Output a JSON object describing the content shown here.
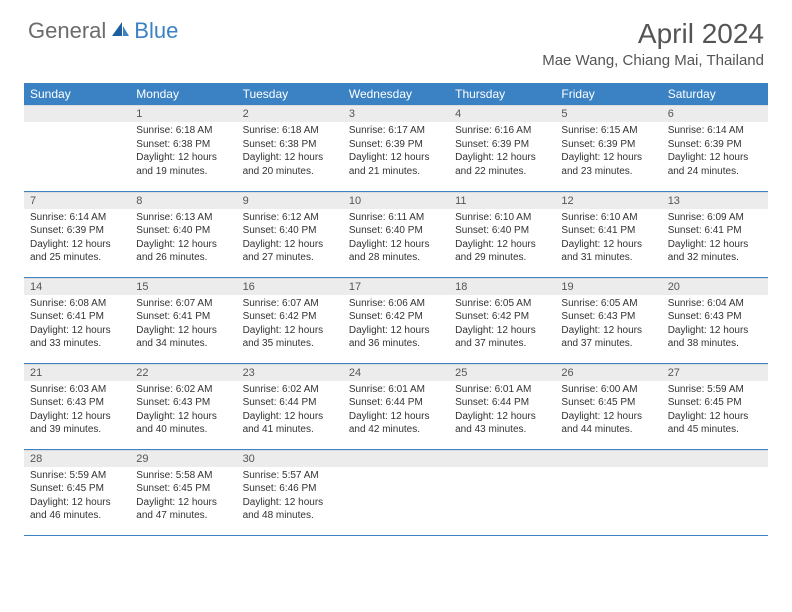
{
  "logo": {
    "general": "General",
    "blue": "Blue"
  },
  "title": "April 2024",
  "location": "Mae Wang, Chiang Mai, Thailand",
  "colors": {
    "header_bg": "#3b82c4",
    "header_text": "#ffffff",
    "daynum_bg": "#ececec",
    "border": "#3b82c4",
    "text": "#333333",
    "logo_gray": "#6b6b6b",
    "logo_blue": "#3b82c4",
    "background": "#ffffff"
  },
  "weekdays": [
    "Sunday",
    "Monday",
    "Tuesday",
    "Wednesday",
    "Thursday",
    "Friday",
    "Saturday"
  ],
  "weeks": [
    [
      {
        "day": "",
        "sunrise": "",
        "sunset": "",
        "daylight": ""
      },
      {
        "day": "1",
        "sunrise": "Sunrise: 6:18 AM",
        "sunset": "Sunset: 6:38 PM",
        "daylight": "Daylight: 12 hours and 19 minutes."
      },
      {
        "day": "2",
        "sunrise": "Sunrise: 6:18 AM",
        "sunset": "Sunset: 6:38 PM",
        "daylight": "Daylight: 12 hours and 20 minutes."
      },
      {
        "day": "3",
        "sunrise": "Sunrise: 6:17 AM",
        "sunset": "Sunset: 6:39 PM",
        "daylight": "Daylight: 12 hours and 21 minutes."
      },
      {
        "day": "4",
        "sunrise": "Sunrise: 6:16 AM",
        "sunset": "Sunset: 6:39 PM",
        "daylight": "Daylight: 12 hours and 22 minutes."
      },
      {
        "day": "5",
        "sunrise": "Sunrise: 6:15 AM",
        "sunset": "Sunset: 6:39 PM",
        "daylight": "Daylight: 12 hours and 23 minutes."
      },
      {
        "day": "6",
        "sunrise": "Sunrise: 6:14 AM",
        "sunset": "Sunset: 6:39 PM",
        "daylight": "Daylight: 12 hours and 24 minutes."
      }
    ],
    [
      {
        "day": "7",
        "sunrise": "Sunrise: 6:14 AM",
        "sunset": "Sunset: 6:39 PM",
        "daylight": "Daylight: 12 hours and 25 minutes."
      },
      {
        "day": "8",
        "sunrise": "Sunrise: 6:13 AM",
        "sunset": "Sunset: 6:40 PM",
        "daylight": "Daylight: 12 hours and 26 minutes."
      },
      {
        "day": "9",
        "sunrise": "Sunrise: 6:12 AM",
        "sunset": "Sunset: 6:40 PM",
        "daylight": "Daylight: 12 hours and 27 minutes."
      },
      {
        "day": "10",
        "sunrise": "Sunrise: 6:11 AM",
        "sunset": "Sunset: 6:40 PM",
        "daylight": "Daylight: 12 hours and 28 minutes."
      },
      {
        "day": "11",
        "sunrise": "Sunrise: 6:10 AM",
        "sunset": "Sunset: 6:40 PM",
        "daylight": "Daylight: 12 hours and 29 minutes."
      },
      {
        "day": "12",
        "sunrise": "Sunrise: 6:10 AM",
        "sunset": "Sunset: 6:41 PM",
        "daylight": "Daylight: 12 hours and 31 minutes."
      },
      {
        "day": "13",
        "sunrise": "Sunrise: 6:09 AM",
        "sunset": "Sunset: 6:41 PM",
        "daylight": "Daylight: 12 hours and 32 minutes."
      }
    ],
    [
      {
        "day": "14",
        "sunrise": "Sunrise: 6:08 AM",
        "sunset": "Sunset: 6:41 PM",
        "daylight": "Daylight: 12 hours and 33 minutes."
      },
      {
        "day": "15",
        "sunrise": "Sunrise: 6:07 AM",
        "sunset": "Sunset: 6:41 PM",
        "daylight": "Daylight: 12 hours and 34 minutes."
      },
      {
        "day": "16",
        "sunrise": "Sunrise: 6:07 AM",
        "sunset": "Sunset: 6:42 PM",
        "daylight": "Daylight: 12 hours and 35 minutes."
      },
      {
        "day": "17",
        "sunrise": "Sunrise: 6:06 AM",
        "sunset": "Sunset: 6:42 PM",
        "daylight": "Daylight: 12 hours and 36 minutes."
      },
      {
        "day": "18",
        "sunrise": "Sunrise: 6:05 AM",
        "sunset": "Sunset: 6:42 PM",
        "daylight": "Daylight: 12 hours and 37 minutes."
      },
      {
        "day": "19",
        "sunrise": "Sunrise: 6:05 AM",
        "sunset": "Sunset: 6:43 PM",
        "daylight": "Daylight: 12 hours and 37 minutes."
      },
      {
        "day": "20",
        "sunrise": "Sunrise: 6:04 AM",
        "sunset": "Sunset: 6:43 PM",
        "daylight": "Daylight: 12 hours and 38 minutes."
      }
    ],
    [
      {
        "day": "21",
        "sunrise": "Sunrise: 6:03 AM",
        "sunset": "Sunset: 6:43 PM",
        "daylight": "Daylight: 12 hours and 39 minutes."
      },
      {
        "day": "22",
        "sunrise": "Sunrise: 6:02 AM",
        "sunset": "Sunset: 6:43 PM",
        "daylight": "Daylight: 12 hours and 40 minutes."
      },
      {
        "day": "23",
        "sunrise": "Sunrise: 6:02 AM",
        "sunset": "Sunset: 6:44 PM",
        "daylight": "Daylight: 12 hours and 41 minutes."
      },
      {
        "day": "24",
        "sunrise": "Sunrise: 6:01 AM",
        "sunset": "Sunset: 6:44 PM",
        "daylight": "Daylight: 12 hours and 42 minutes."
      },
      {
        "day": "25",
        "sunrise": "Sunrise: 6:01 AM",
        "sunset": "Sunset: 6:44 PM",
        "daylight": "Daylight: 12 hours and 43 minutes."
      },
      {
        "day": "26",
        "sunrise": "Sunrise: 6:00 AM",
        "sunset": "Sunset: 6:45 PM",
        "daylight": "Daylight: 12 hours and 44 minutes."
      },
      {
        "day": "27",
        "sunrise": "Sunrise: 5:59 AM",
        "sunset": "Sunset: 6:45 PM",
        "daylight": "Daylight: 12 hours and 45 minutes."
      }
    ],
    [
      {
        "day": "28",
        "sunrise": "Sunrise: 5:59 AM",
        "sunset": "Sunset: 6:45 PM",
        "daylight": "Daylight: 12 hours and 46 minutes."
      },
      {
        "day": "29",
        "sunrise": "Sunrise: 5:58 AM",
        "sunset": "Sunset: 6:45 PM",
        "daylight": "Daylight: 12 hours and 47 minutes."
      },
      {
        "day": "30",
        "sunrise": "Sunrise: 5:57 AM",
        "sunset": "Sunset: 6:46 PM",
        "daylight": "Daylight: 12 hours and 48 minutes."
      },
      {
        "day": "",
        "sunrise": "",
        "sunset": "",
        "daylight": ""
      },
      {
        "day": "",
        "sunrise": "",
        "sunset": "",
        "daylight": ""
      },
      {
        "day": "",
        "sunrise": "",
        "sunset": "",
        "daylight": ""
      },
      {
        "day": "",
        "sunrise": "",
        "sunset": "",
        "daylight": ""
      }
    ]
  ]
}
